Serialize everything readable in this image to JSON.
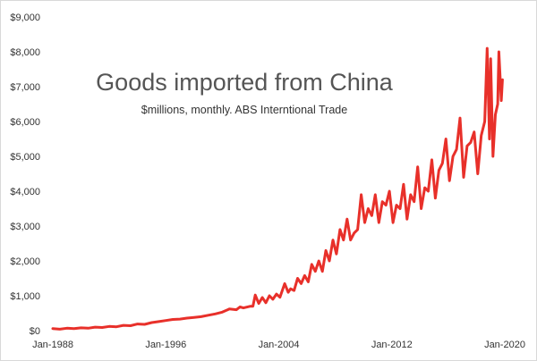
{
  "chart_data": {
    "type": "line",
    "title": "Goods imported from China",
    "subtitle": "$millions, monthly. ABS Interntional Trade",
    "xlabel": "",
    "ylabel": "",
    "x_tick_labels": [
      "Jan-1988",
      "Jan-1996",
      "Jan-2004",
      "Jan-2012",
      "Jan-2020"
    ],
    "y_tick_labels": [
      "$0",
      "$1,000",
      "$2,000",
      "$3,000",
      "$4,000",
      "$5,000",
      "$6,000",
      "$7,000",
      "$8,000",
      "$9,000"
    ],
    "ylim": [
      0,
      9000
    ],
    "xlim": [
      "1988-01",
      "2020-01"
    ],
    "grid": false,
    "legend": "none",
    "series": [
      {
        "color": "#e8302a",
        "points": [
          [
            "1988-01",
            60
          ],
          [
            "1988-07",
            40
          ],
          [
            "1989-01",
            70
          ],
          [
            "1989-07",
            60
          ],
          [
            "1990-01",
            80
          ],
          [
            "1990-07",
            70
          ],
          [
            "1991-01",
            100
          ],
          [
            "1991-07",
            90
          ],
          [
            "1992-01",
            120
          ],
          [
            "1992-07",
            110
          ],
          [
            "1993-01",
            150
          ],
          [
            "1993-07",
            140
          ],
          [
            "1994-01",
            190
          ],
          [
            "1994-07",
            180
          ],
          [
            "1995-01",
            230
          ],
          [
            "1995-07",
            260
          ],
          [
            "1996-01",
            290
          ],
          [
            "1996-07",
            320
          ],
          [
            "1997-01",
            330
          ],
          [
            "1997-07",
            360
          ],
          [
            "1998-01",
            380
          ],
          [
            "1998-07",
            400
          ],
          [
            "1999-01",
            440
          ],
          [
            "1999-07",
            480
          ],
          [
            "2000-01",
            530
          ],
          [
            "2000-07",
            620
          ],
          [
            "2001-01",
            600
          ],
          [
            "2001-04",
            680
          ],
          [
            "2001-07",
            650
          ],
          [
            "2002-01",
            700
          ],
          [
            "2002-03",
            700
          ],
          [
            "2002-05",
            1020
          ],
          [
            "2002-08",
            780
          ],
          [
            "2002-11",
            950
          ],
          [
            "2003-02",
            800
          ],
          [
            "2003-05",
            1000
          ],
          [
            "2003-08",
            900
          ],
          [
            "2003-11",
            1050
          ],
          [
            "2004-02",
            960
          ],
          [
            "2004-06",
            1350
          ],
          [
            "2004-09",
            1100
          ],
          [
            "2004-11",
            1200
          ],
          [
            "2005-02",
            1150
          ],
          [
            "2005-05",
            1500
          ],
          [
            "2005-08",
            1350
          ],
          [
            "2005-11",
            1580
          ],
          [
            "2006-02",
            1400
          ],
          [
            "2006-05",
            1900
          ],
          [
            "2006-08",
            1700
          ],
          [
            "2006-11",
            2000
          ],
          [
            "2007-02",
            1700
          ],
          [
            "2007-05",
            2300
          ],
          [
            "2007-08",
            2000
          ],
          [
            "2007-11",
            2600
          ],
          [
            "2008-02",
            2200
          ],
          [
            "2008-05",
            2900
          ],
          [
            "2008-08",
            2600
          ],
          [
            "2008-11",
            3200
          ],
          [
            "2009-02",
            2600
          ],
          [
            "2009-05",
            2800
          ],
          [
            "2009-08",
            2900
          ],
          [
            "2009-11",
            3900
          ],
          [
            "2010-02",
            3100
          ],
          [
            "2010-05",
            3500
          ],
          [
            "2010-08",
            3300
          ],
          [
            "2010-11",
            3900
          ],
          [
            "2011-02",
            3100
          ],
          [
            "2011-05",
            3700
          ],
          [
            "2011-08",
            3600
          ],
          [
            "2011-11",
            4000
          ],
          [
            "2012-02",
            3100
          ],
          [
            "2012-05",
            3600
          ],
          [
            "2012-08",
            3500
          ],
          [
            "2012-11",
            4200
          ],
          [
            "2013-02",
            3200
          ],
          [
            "2013-05",
            3900
          ],
          [
            "2013-08",
            3700
          ],
          [
            "2013-11",
            4700
          ],
          [
            "2014-02",
            3500
          ],
          [
            "2014-05",
            4100
          ],
          [
            "2014-08",
            4000
          ],
          [
            "2014-11",
            4900
          ],
          [
            "2015-02",
            3800
          ],
          [
            "2015-05",
            4600
          ],
          [
            "2015-08",
            4800
          ],
          [
            "2015-11",
            5500
          ],
          [
            "2016-02",
            4300
          ],
          [
            "2016-05",
            5000
          ],
          [
            "2016-08",
            5200
          ],
          [
            "2016-11",
            6100
          ],
          [
            "2017-02",
            4400
          ],
          [
            "2017-05",
            5300
          ],
          [
            "2017-08",
            5400
          ],
          [
            "2017-11",
            5700
          ],
          [
            "2018-02",
            4500
          ],
          [
            "2018-05",
            5600
          ],
          [
            "2018-08",
            6000
          ],
          [
            "2018-10",
            8100
          ],
          [
            "2018-12",
            5500
          ],
          [
            "2019-01",
            7800
          ],
          [
            "2019-03",
            5000
          ],
          [
            "2019-05",
            6200
          ],
          [
            "2019-07",
            6500
          ],
          [
            "2019-08",
            8000
          ],
          [
            "2019-10",
            6600
          ],
          [
            "2019-11",
            7200
          ]
        ]
      }
    ]
  }
}
